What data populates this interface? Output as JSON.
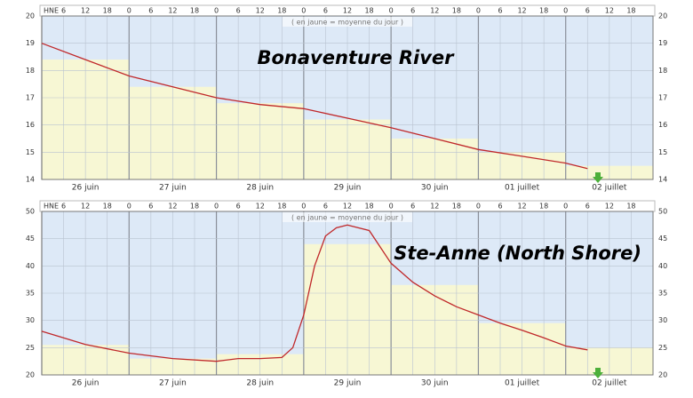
{
  "chart_data": [
    {
      "type": "line",
      "title": "Bonaventure River",
      "annotation": "( en jaune = moyenne du jour )",
      "categories": [
        "26 juin",
        "27 juin",
        "28 juin",
        "29 juin",
        "30 juin",
        "01 juillet",
        "02 juillet"
      ],
      "daily_mean": {
        "values": [
          18.4,
          17.4,
          16.8,
          16.2,
          15.5,
          15.0,
          14.5
        ],
        "color": "#f7f7d4"
      },
      "line": {
        "x": [
          0,
          12,
          24,
          36,
          48,
          60,
          72,
          84,
          96,
          108,
          120,
          132,
          144,
          150
        ],
        "values": [
          19.0,
          18.4,
          17.8,
          17.4,
          17.0,
          16.75,
          16.6,
          16.25,
          15.9,
          15.5,
          15.1,
          14.85,
          14.6,
          14.4
        ],
        "color": "#c0282a"
      },
      "xlim": [
        0,
        168
      ],
      "xticks": [
        {
          "value": 0,
          "label": "HNE"
        },
        6,
        12,
        18,
        {
          "value": 24,
          "label": "0"
        },
        {
          "value": 30,
          "label": "6"
        },
        {
          "value": 36,
          "label": "12"
        },
        {
          "value": 42,
          "label": "18"
        },
        {
          "value": 48,
          "label": "0"
        },
        {
          "value": 54,
          "label": "6"
        },
        {
          "value": 60,
          "label": "12"
        },
        {
          "value": 66,
          "label": "18"
        },
        {
          "value": 72,
          "label": "0"
        },
        {
          "value": 78,
          "label": "6"
        },
        {
          "value": 84,
          "label": "12"
        },
        {
          "value": 90,
          "label": "18"
        },
        {
          "value": 96,
          "label": "0"
        },
        {
          "value": 102,
          "label": "6"
        },
        {
          "value": 108,
          "label": "12"
        },
        {
          "value": 114,
          "label": "18"
        },
        {
          "value": 120,
          "label": "0"
        },
        {
          "value": 126,
          "label": "6"
        },
        {
          "value": 132,
          "label": "12"
        },
        {
          "value": 138,
          "label": "18"
        },
        {
          "value": 144,
          "label": "0"
        },
        {
          "value": 150,
          "label": "6"
        },
        {
          "value": 156,
          "label": "12"
        },
        {
          "value": 162,
          "label": "18"
        }
      ],
      "ylim": [
        14,
        20
      ],
      "yticks": [
        14,
        15,
        16,
        17,
        18,
        19,
        20
      ],
      "background": "#dde9f7",
      "grid": true
    },
    {
      "type": "line",
      "title": "Ste-Anne (North Shore)",
      "annotation": "( en jaune = moyenne du jour )",
      "categories": [
        "26 juin",
        "27 juin",
        "28 juin",
        "29 juin",
        "30 juin",
        "01 juillet",
        "02 juillet"
      ],
      "daily_mean": {
        "values": [
          25.5,
          23,
          23.8,
          44,
          36.5,
          29.5,
          25
        ],
        "color": "#f7f7d4"
      },
      "line": {
        "x": [
          0,
          12,
          24,
          36,
          48,
          54,
          60,
          66,
          69,
          72,
          75,
          78,
          81,
          84,
          90,
          96,
          102,
          108,
          114,
          120,
          126,
          132,
          138,
          144,
          150
        ],
        "values": [
          28,
          25.6,
          24,
          23,
          22.5,
          23,
          23,
          23.2,
          25,
          31,
          40,
          45.5,
          47,
          47.5,
          46.5,
          40.5,
          37,
          34.5,
          32.5,
          31,
          29.5,
          28.2,
          26.8,
          25.3,
          24.6
        ],
        "color": "#c0282a"
      },
      "xlim": [
        0,
        168
      ],
      "xticks": [
        {
          "value": 0,
          "label": "HNE"
        },
        6,
        12,
        18,
        {
          "value": 24,
          "label": "0"
        },
        {
          "value": 30,
          "label": "6"
        },
        {
          "value": 36,
          "label": "12"
        },
        {
          "value": 42,
          "label": "18"
        },
        {
          "value": 48,
          "label": "0"
        },
        {
          "value": 54,
          "label": "6"
        },
        {
          "value": 60,
          "label": "12"
        },
        {
          "value": 66,
          "label": "18"
        },
        {
          "value": 72,
          "label": "0"
        },
        {
          "value": 78,
          "label": "6"
        },
        {
          "value": 84,
          "label": "12"
        },
        {
          "value": 90,
          "label": "18"
        },
        {
          "value": 96,
          "label": "0"
        },
        {
          "value": 102,
          "label": "6"
        },
        {
          "value": 108,
          "label": "12"
        },
        {
          "value": 114,
          "label": "18"
        },
        {
          "value": 120,
          "label": "0"
        },
        {
          "value": 126,
          "label": "6"
        },
        {
          "value": 132,
          "label": "12"
        },
        {
          "value": 138,
          "label": "18"
        },
        {
          "value": 144,
          "label": "0"
        },
        {
          "value": 150,
          "label": "6"
        },
        {
          "value": 156,
          "label": "12"
        },
        {
          "value": 162,
          "label": "18"
        }
      ],
      "ylim": [
        20,
        50
      ],
      "yticks": [
        20,
        25,
        30,
        35,
        40,
        45,
        50
      ],
      "background": "#dde9f7",
      "grid": true
    }
  ]
}
